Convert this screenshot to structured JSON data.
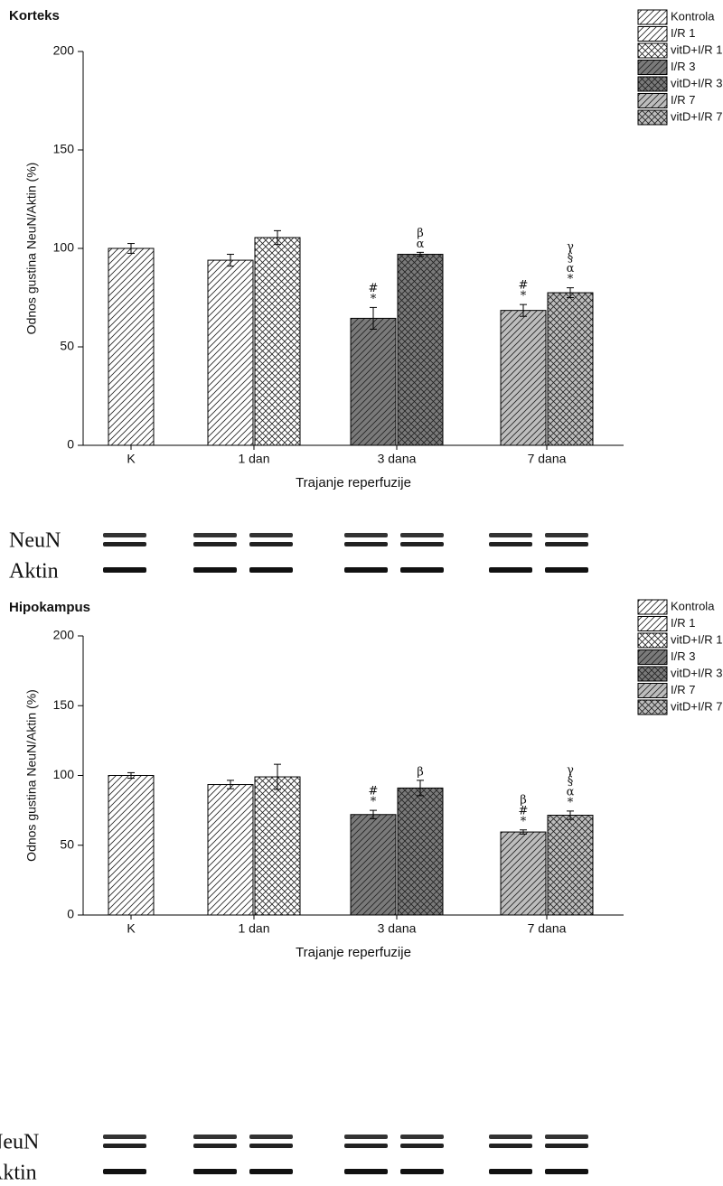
{
  "chart_data": [
    {
      "type": "bar",
      "title": "Korteks",
      "y_label": "Odnos gustina NeuN/Aktin (%)",
      "x_label": "Trajanje reperfuzije",
      "categories": [
        "K",
        "1 dan",
        "3 dana",
        "7 dana"
      ],
      "ylim": [
        0,
        200
      ],
      "yticks": [
        0,
        50,
        100,
        150,
        200
      ],
      "legend": "top-right",
      "series": [
        {
          "name": "Kontrola",
          "color": "#ffffff",
          "hatch": null,
          "values": [
            100,
            null,
            null,
            null
          ],
          "errors": [
            2.5,
            null,
            null,
            null
          ],
          "markers": [
            null,
            null,
            null,
            null
          ]
        },
        {
          "name": "I/R 1",
          "color": "#ffffff",
          "hatch": "/",
          "values": [
            null,
            94,
            null,
            null
          ],
          "errors": [
            null,
            3,
            null,
            null
          ],
          "markers": [
            null,
            null,
            null,
            null
          ]
        },
        {
          "name": "vitD+I/R 1",
          "color": "#ffffff",
          "hatch": "x",
          "values": [
            null,
            105.5,
            null,
            null
          ],
          "errors": [
            null,
            3.5,
            null,
            null
          ],
          "markers": [
            null,
            null,
            null,
            null
          ]
        },
        {
          "name": "I/R 3",
          "color": "#7a7a7a",
          "hatch": "/",
          "values": [
            null,
            null,
            64.5,
            null
          ],
          "errors": [
            null,
            null,
            5.5,
            null
          ],
          "markers": [
            null,
            null,
            [
              "#",
              "*"
            ],
            null
          ]
        },
        {
          "name": "vitD+I/R 3",
          "color": "#7a7a7a",
          "hatch": "x",
          "values": [
            null,
            null,
            97,
            null
          ],
          "errors": [
            null,
            null,
            1,
            null
          ],
          "markers": [
            null,
            null,
            [
              "β",
              "α"
            ],
            null
          ]
        },
        {
          "name": "I/R 7",
          "color": "#bdbdbd",
          "hatch": "/",
          "values": [
            null,
            null,
            null,
            68.5
          ],
          "errors": [
            null,
            null,
            null,
            3
          ],
          "markers": [
            null,
            null,
            null,
            [
              "#",
              "*"
            ]
          ]
        },
        {
          "name": "vitD+I/R 7",
          "color": "#bdbdbd",
          "hatch": "x",
          "values": [
            null,
            null,
            null,
            77.5
          ],
          "errors": [
            null,
            null,
            null,
            2.5
          ],
          "markers": [
            null,
            null,
            null,
            [
              "γ",
              "§",
              "α",
              "*"
            ]
          ]
        }
      ],
      "blot_labels": [
        "NeuN",
        "Aktin"
      ]
    },
    {
      "type": "bar",
      "title": "Hipokampus",
      "y_label": "Odnos gustina NeuN/Aktin (%)",
      "x_label": "Trajanje reperfuzije",
      "categories": [
        "K",
        "1 dan",
        "3 dana",
        "7 dana"
      ],
      "ylim": [
        0,
        200
      ],
      "yticks": [
        0,
        50,
        100,
        150,
        200
      ],
      "legend": "top-right",
      "series": [
        {
          "name": "Kontrola",
          "color": "#ffffff",
          "hatch": null,
          "values": [
            100,
            null,
            null,
            null
          ],
          "errors": [
            2,
            null,
            null,
            null
          ],
          "markers": [
            null,
            null,
            null,
            null
          ]
        },
        {
          "name": "I/R 1",
          "color": "#ffffff",
          "hatch": "/",
          "values": [
            null,
            93.5,
            null,
            null
          ],
          "errors": [
            null,
            3,
            null,
            null
          ],
          "markers": [
            null,
            null,
            null,
            null
          ]
        },
        {
          "name": "vitD+I/R 1",
          "color": "#ffffff",
          "hatch": "x",
          "values": [
            null,
            99,
            null,
            null
          ],
          "errors": [
            null,
            9,
            null,
            null
          ],
          "markers": [
            null,
            null,
            null,
            null
          ]
        },
        {
          "name": "I/R 3",
          "color": "#7a7a7a",
          "hatch": "/",
          "values": [
            null,
            null,
            72,
            null
          ],
          "errors": [
            null,
            null,
            3,
            null
          ],
          "markers": [
            null,
            null,
            [
              "#",
              "*"
            ],
            null
          ]
        },
        {
          "name": "vitD+I/R 3",
          "color": "#7a7a7a",
          "hatch": "x",
          "values": [
            null,
            null,
            91,
            null
          ],
          "errors": [
            null,
            null,
            5.5,
            null
          ],
          "markers": [
            null,
            null,
            [
              "β"
            ],
            null
          ]
        },
        {
          "name": "I/R 7",
          "color": "#bdbdbd",
          "hatch": "/",
          "values": [
            null,
            null,
            null,
            59.5
          ],
          "errors": [
            null,
            null,
            null,
            1.5
          ],
          "markers": [
            null,
            null,
            null,
            [
              "β",
              "#",
              "*"
            ]
          ]
        },
        {
          "name": "vitD+I/R 7",
          "color": "#bdbdbd",
          "hatch": "x",
          "values": [
            null,
            null,
            null,
            71.5
          ],
          "errors": [
            null,
            null,
            null,
            3
          ],
          "markers": [
            null,
            null,
            null,
            [
              "γ",
              "§",
              "α",
              "*"
            ]
          ]
        }
      ],
      "blot_labels": [
        "NeuN",
        "Aktin"
      ]
    }
  ]
}
